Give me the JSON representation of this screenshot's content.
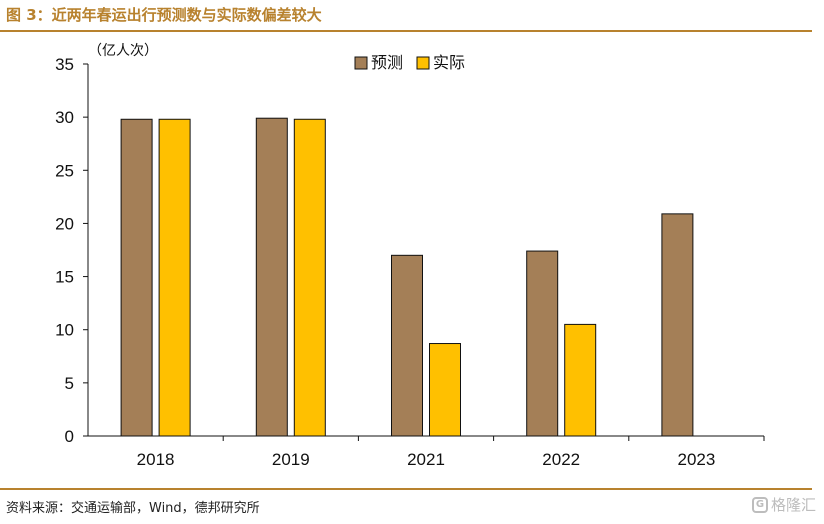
{
  "header": {
    "title": "图 3：近两年春运出行预测数与实际数偏差较大"
  },
  "footer": {
    "source": "资料来源：交通运输部，Wind，德邦研究所",
    "watermark": "格隆汇"
  },
  "chart_data": {
    "type": "bar",
    "title": "",
    "ylabel": "（亿人次）",
    "xlabel": "",
    "categories": [
      "2018",
      "2019",
      "2021",
      "2022",
      "2023"
    ],
    "series": [
      {
        "name": "预测",
        "color": "#a47f57",
        "values": [
          29.8,
          29.9,
          17.0,
          17.4,
          20.9
        ]
      },
      {
        "name": "实际",
        "color": "#ffc000",
        "values": [
          29.8,
          29.8,
          8.7,
          10.5,
          null
        ]
      }
    ],
    "ylim": [
      0,
      35
    ],
    "yticks": [
      0,
      5,
      10,
      15,
      20,
      25,
      30,
      35
    ],
    "grid": false,
    "legend_position": "top-center"
  }
}
